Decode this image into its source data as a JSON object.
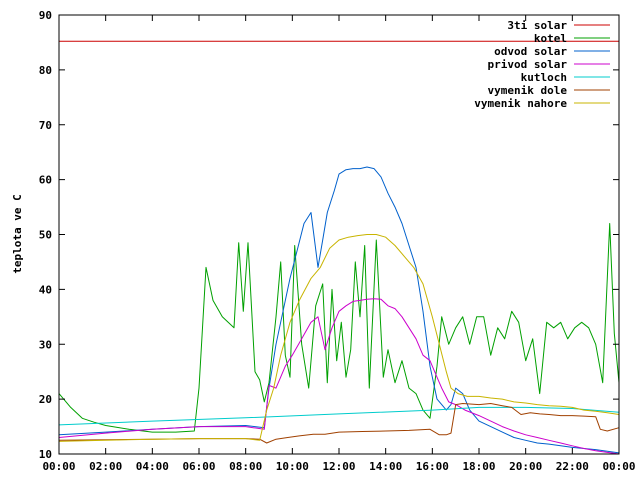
{
  "chart_data": {
    "type": "line",
    "xlabel": "",
    "ylabel": "teplota ve C",
    "xlim": [
      "00:00",
      "24:00"
    ],
    "ylim": [
      10,
      90
    ],
    "x_ticks": [
      "00:00",
      "02:00",
      "04:00",
      "06:00",
      "08:00",
      "10:00",
      "12:00",
      "14:00",
      "16:00",
      "18:00",
      "20:00",
      "22:00",
      "00:00"
    ],
    "y_ticks": [
      10,
      20,
      30,
      40,
      50,
      60,
      70,
      80,
      90
    ],
    "grid": false,
    "legend_position": "top-right",
    "series": [
      {
        "name": "3ti solar",
        "color": "#cc0000",
        "x": [
          0,
          24
        ],
        "y": [
          85.2,
          85.2
        ]
      },
      {
        "name": "kotel",
        "color": "#00a000",
        "x": [
          0,
          0.5,
          1,
          1.5,
          2,
          3,
          4,
          5,
          5.8,
          6,
          6.3,
          6.6,
          7,
          7.5,
          7.7,
          7.9,
          8.1,
          8.4,
          8.6,
          8.8,
          9.0,
          9.3,
          9.5,
          9.7,
          9.9,
          10.1,
          10.4,
          10.7,
          11.0,
          11.3,
          11.5,
          11.7,
          11.9,
          12.1,
          12.3,
          12.5,
          12.7,
          12.9,
          13.1,
          13.3,
          13.6,
          13.9,
          14.1,
          14.4,
          14.7,
          15.0,
          15.3,
          15.6,
          15.9,
          16.2,
          16.4,
          16.7,
          17.0,
          17.3,
          17.6,
          17.9,
          18.2,
          18.5,
          18.8,
          19.1,
          19.4,
          19.7,
          20.0,
          20.3,
          20.6,
          20.9,
          21.2,
          21.5,
          21.8,
          22.1,
          22.4,
          22.7,
          23.0,
          23.3,
          23.6,
          23.8,
          24.0
        ],
        "y": [
          21,
          18.5,
          16.5,
          15.8,
          15.2,
          14.5,
          14,
          14,
          14.2,
          22,
          44,
          38,
          35,
          33,
          48.5,
          36,
          48.5,
          25,
          23.5,
          19.5,
          23,
          35,
          45,
          28,
          24,
          48,
          30,
          22,
          37,
          41,
          23,
          40,
          27,
          34,
          24,
          29,
          45,
          35,
          48,
          22,
          49,
          24,
          29,
          23,
          27,
          22,
          21,
          18,
          16.5,
          26,
          35,
          30,
          33,
          35,
          30,
          35,
          35,
          28,
          33,
          31,
          36,
          34,
          27,
          31,
          21,
          34,
          33,
          34,
          31,
          33,
          34,
          33,
          30,
          23,
          52,
          32,
          23
        ]
      },
      {
        "name": "odvod solar",
        "color": "#0060cc",
        "x": [
          0,
          2,
          4,
          6,
          8,
          8.8,
          9.0,
          9.3,
          9.6,
          9.9,
          10.2,
          10.5,
          10.8,
          11.1,
          11.3,
          11.5,
          11.8,
          12.0,
          12.3,
          12.6,
          12.9,
          13.2,
          13.5,
          13.8,
          14.1,
          14.4,
          14.7,
          15.0,
          15.3,
          15.6,
          15.9,
          16.2,
          16.4,
          16.6,
          16.8,
          17.0,
          17.3,
          17.6,
          18,
          18.5,
          19,
          19.5,
          20,
          20.5,
          21,
          21.5,
          22,
          22.5,
          23,
          23.5,
          24
        ],
        "y": [
          13.5,
          14,
          14.5,
          15,
          15.2,
          14.8,
          22,
          30,
          36,
          42,
          47,
          52,
          54,
          44,
          49,
          54,
          58,
          61,
          61.8,
          62,
          62,
          62.3,
          62,
          60.5,
          57.5,
          55,
          52,
          48,
          44,
          36,
          26,
          20,
          19,
          18,
          19,
          22,
          21,
          18,
          16,
          15,
          14,
          13,
          12.5,
          12,
          11.8,
          11.5,
          11.2,
          11,
          10.8,
          10.5,
          10.2
        ]
      },
      {
        "name": "privod solar",
        "color": "#cc00cc",
        "x": [
          0,
          2,
          4,
          6,
          8,
          8.8,
          9.0,
          9.3,
          9.7,
          10.0,
          10.4,
          10.8,
          11.1,
          11.4,
          11.7,
          12.0,
          12.3,
          12.6,
          12.9,
          13.2,
          13.5,
          13.8,
          14.1,
          14.4,
          14.7,
          15.0,
          15.3,
          15.6,
          15.9,
          16.2,
          16.4,
          16.7,
          17.0,
          17.4,
          18,
          18.5,
          19,
          19.5,
          20,
          20.5,
          21,
          21.5,
          22,
          22.5,
          23,
          23.5,
          24
        ],
        "y": [
          13,
          13.8,
          14.5,
          15,
          15,
          14.5,
          22.5,
          22,
          26,
          28,
          31,
          34,
          35,
          29,
          33,
          36,
          37,
          37.8,
          38,
          38.2,
          38.3,
          38.2,
          37,
          36.5,
          35,
          33,
          31,
          28,
          27,
          24,
          22,
          19.5,
          19,
          18,
          17,
          16,
          15,
          14.2,
          13.5,
          13,
          12.5,
          12,
          11.5,
          11,
          10.6,
          10.3,
          10
        ]
      },
      {
        "name": "kutloch",
        "color": "#00cccc",
        "x": [
          0,
          4,
          8,
          12,
          16,
          18,
          20,
          22,
          24
        ],
        "y": [
          15.3,
          16,
          16.6,
          17.3,
          18,
          18.5,
          18.5,
          18.3,
          17.6
        ]
      },
      {
        "name": "vymenik dole",
        "color": "#a04000",
        "x": [
          0,
          2,
          4,
          6,
          8,
          8.6,
          8.9,
          9.3,
          9.8,
          10.3,
          10.9,
          11.4,
          12,
          13,
          14,
          15,
          15.9,
          16.3,
          16.6,
          16.8,
          17.0,
          17.3,
          18,
          18.5,
          19,
          19.4,
          19.8,
          20.2,
          20.6,
          21,
          21.5,
          22,
          22.5,
          23,
          23.2,
          23.5,
          24
        ],
        "y": [
          12.5,
          12.6,
          12.7,
          12.8,
          12.8,
          12.7,
          12,
          12.7,
          13,
          13.3,
          13.6,
          13.6,
          14,
          14.1,
          14.2,
          14.3,
          14.5,
          13.5,
          13.5,
          13.8,
          19,
          19.2,
          19,
          19.2,
          18.8,
          18.5,
          17.2,
          17.5,
          17.3,
          17.2,
          17,
          17,
          16.9,
          16.8,
          14.5,
          14.2,
          14.8
        ]
      },
      {
        "name": "vymenik nahore",
        "color": "#c8b400",
        "x": [
          0,
          2,
          4,
          6,
          8,
          8.6,
          8.9,
          9.2,
          9.5,
          9.9,
          10.3,
          10.8,
          11.2,
          11.6,
          12.0,
          12.4,
          12.8,
          13.2,
          13.6,
          14.0,
          14.4,
          14.8,
          15.2,
          15.6,
          16.0,
          16.3,
          16.6,
          16.8,
          17.1,
          17.5,
          18,
          18.5,
          19,
          19.5,
          20,
          20.5,
          21,
          21.5,
          22,
          22.5,
          23,
          23.5,
          24
        ],
        "y": [
          12.3,
          12.5,
          12.7,
          12.8,
          12.8,
          12.5,
          18,
          22,
          28,
          34,
          38,
          42,
          44,
          47.5,
          49,
          49.5,
          49.8,
          50,
          50,
          49.5,
          48,
          46,
          44,
          41,
          35,
          30,
          25,
          22,
          21,
          20.5,
          20.5,
          20.2,
          20,
          19.5,
          19.3,
          19,
          18.8,
          18.7,
          18.5,
          18,
          17.8,
          17.5,
          17.2
        ]
      }
    ]
  }
}
